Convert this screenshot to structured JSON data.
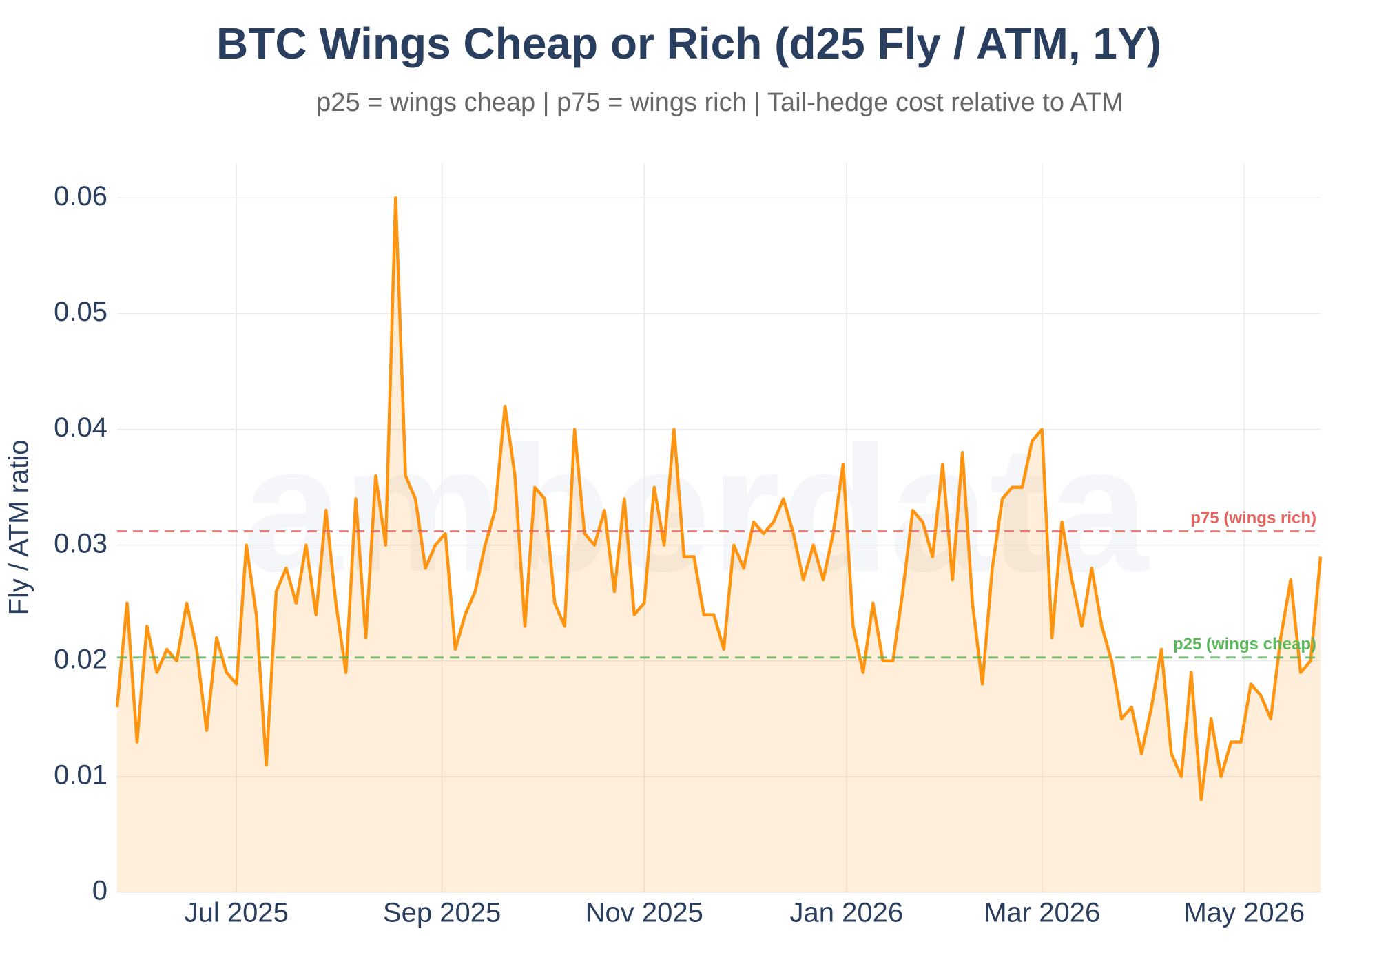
{
  "chart_data": {
    "type": "line",
    "title": "BTC Wings Cheap or Rich (d25 Fly / ATM, 1Y)",
    "subtitle": "p25 = wings cheap | p75 = wings rich | Tail-hedge cost relative to ATM",
    "y_label": "Fly / ATM ratio",
    "watermark": "amberdata",
    "grid": true,
    "xlim": [
      "2025-05-26",
      "2026-05-24"
    ],
    "xticks": [
      {
        "value": "2025-07-01",
        "label": "Jul 2025"
      },
      {
        "value": "2025-09-01",
        "label": "Sep 2025"
      },
      {
        "value": "2025-11-01",
        "label": "Nov 2025"
      },
      {
        "value": "2026-01-01",
        "label": "Jan 2026"
      },
      {
        "value": "2026-03-01",
        "label": "Mar 2026"
      },
      {
        "value": "2026-05-01",
        "label": "May 2026"
      }
    ],
    "ylim": [
      0,
      0.063
    ],
    "yticks": [
      0,
      0.01,
      0.02,
      0.03,
      0.04,
      0.05,
      0.06
    ],
    "reference_lines": [
      {
        "label": "p75 (wings rich)",
        "value": 0.0312,
        "color": "#e8625e"
      },
      {
        "label": "p25 (wings cheap)",
        "value": 0.0203,
        "color": "#5cb85c"
      }
    ],
    "x": [
      "2025-05-26",
      "2025-05-29",
      "2025-06-01",
      "2025-06-04",
      "2025-06-07",
      "2025-06-10",
      "2025-06-13",
      "2025-06-16",
      "2025-06-19",
      "2025-06-22",
      "2025-06-25",
      "2025-06-28",
      "2025-07-01",
      "2025-07-04",
      "2025-07-07",
      "2025-07-10",
      "2025-07-13",
      "2025-07-16",
      "2025-07-19",
      "2025-07-22",
      "2025-07-25",
      "2025-07-28",
      "2025-07-31",
      "2025-08-03",
      "2025-08-06",
      "2025-08-09",
      "2025-08-12",
      "2025-08-15",
      "2025-08-18",
      "2025-08-21",
      "2025-08-24",
      "2025-08-27",
      "2025-08-30",
      "2025-09-02",
      "2025-09-05",
      "2025-09-08",
      "2025-09-11",
      "2025-09-14",
      "2025-09-17",
      "2025-09-20",
      "2025-09-23",
      "2025-09-26",
      "2025-09-29",
      "2025-10-02",
      "2025-10-05",
      "2025-10-08",
      "2025-10-11",
      "2025-10-14",
      "2025-10-17",
      "2025-10-20",
      "2025-10-23",
      "2025-10-26",
      "2025-10-29",
      "2025-11-01",
      "2025-11-04",
      "2025-11-07",
      "2025-11-10",
      "2025-11-13",
      "2025-11-16",
      "2025-11-19",
      "2025-11-22",
      "2025-11-25",
      "2025-11-28",
      "2025-12-01",
      "2025-12-04",
      "2025-12-07",
      "2025-12-10",
      "2025-12-13",
      "2025-12-16",
      "2025-12-19",
      "2025-12-22",
      "2025-12-25",
      "2025-12-28",
      "2025-12-31",
      "2026-01-03",
      "2026-01-06",
      "2026-01-09",
      "2026-01-12",
      "2026-01-15",
      "2026-01-18",
      "2026-01-21",
      "2026-01-24",
      "2026-01-27",
      "2026-01-30",
      "2026-02-02",
      "2026-02-05",
      "2026-02-08",
      "2026-02-11",
      "2026-02-14",
      "2026-02-17",
      "2026-02-20",
      "2026-02-23",
      "2026-02-26",
      "2026-03-01",
      "2026-03-04",
      "2026-03-07",
      "2026-03-10",
      "2026-03-13",
      "2026-03-16",
      "2026-03-19",
      "2026-03-22",
      "2026-03-25",
      "2026-03-28",
      "2026-03-31",
      "2026-04-03",
      "2026-04-06",
      "2026-04-09",
      "2026-04-12",
      "2026-04-15",
      "2026-04-18",
      "2026-04-21",
      "2026-04-24",
      "2026-04-27",
      "2026-04-30",
      "2026-05-03",
      "2026-05-06",
      "2026-05-09",
      "2026-05-12",
      "2026-05-15",
      "2026-05-18",
      "2026-05-21",
      "2026-05-24"
    ],
    "series": [
      {
        "name": "Fly / ATM",
        "color": "#ff9410",
        "fill": "rgba(255,165,50,0.18)",
        "values": [
          0.016,
          0.025,
          0.013,
          0.023,
          0.019,
          0.021,
          0.02,
          0.025,
          0.021,
          0.014,
          0.022,
          0.019,
          0.018,
          0.03,
          0.024,
          0.011,
          0.026,
          0.028,
          0.025,
          0.03,
          0.024,
          0.033,
          0.025,
          0.019,
          0.034,
          0.022,
          0.036,
          0.03,
          0.06,
          0.036,
          0.034,
          0.028,
          0.03,
          0.031,
          0.021,
          0.024,
          0.026,
          0.03,
          0.033,
          0.042,
          0.036,
          0.023,
          0.035,
          0.034,
          0.025,
          0.023,
          0.04,
          0.031,
          0.03,
          0.033,
          0.026,
          0.034,
          0.024,
          0.025,
          0.035,
          0.03,
          0.04,
          0.029,
          0.029,
          0.024,
          0.024,
          0.021,
          0.03,
          0.028,
          0.032,
          0.031,
          0.032,
          0.034,
          0.031,
          0.027,
          0.03,
          0.027,
          0.031,
          0.037,
          0.023,
          0.019,
          0.025,
          0.02,
          0.02,
          0.026,
          0.033,
          0.032,
          0.029,
          0.037,
          0.027,
          0.038,
          0.025,
          0.018,
          0.028,
          0.034,
          0.035,
          0.035,
          0.039,
          0.04,
          0.022,
          0.032,
          0.027,
          0.023,
          0.028,
          0.023,
          0.02,
          0.015,
          0.016,
          0.012,
          0.016,
          0.021,
          0.012,
          0.01,
          0.019,
          0.008,
          0.015,
          0.01,
          0.013,
          0.013,
          0.018,
          0.017,
          0.015,
          0.022,
          0.027,
          0.019,
          0.02,
          0.029
        ]
      }
    ]
  }
}
